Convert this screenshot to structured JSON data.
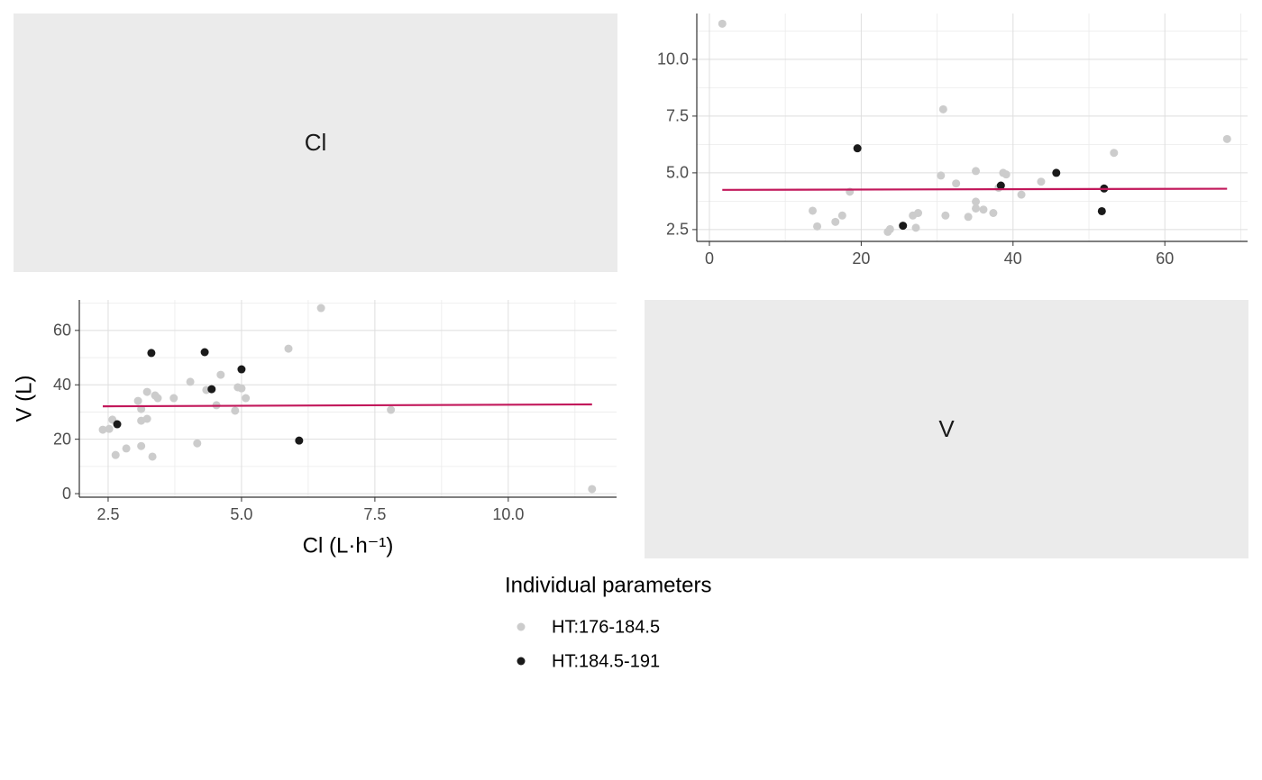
{
  "diagonal_labels": [
    "Cl",
    "V"
  ],
  "chart_data": [
    {
      "type": "scatter",
      "x_label": "Cl (L·h⁻¹)",
      "y_label": "V (L)",
      "legend_title": "Individual parameters",
      "xlim": [
        1.96,
        12.03
      ],
      "ylim": [
        -1.3,
        71.2
      ],
      "xticks": [
        2.5,
        {
          "value": 5,
          "label": "5.0"
        },
        7.5,
        {
          "value": 10,
          "label": "10.0"
        }
      ],
      "yticks": [
        0,
        20,
        40,
        60
      ],
      "minor_xticks": [
        3.75,
        6.25,
        8.75,
        11.25
      ],
      "minor_yticks": [
        10,
        30,
        50,
        70
      ],
      "grid": true,
      "series": [
        {
          "name": "HT:176-184.5",
          "color": "#cccccc",
          "x": [
            11.57,
            6.49,
            5.88,
            7.8,
            4.61,
            4.04,
            4.34,
            4.53,
            4.93,
            5.0,
            5.08,
            4.88,
            4.17,
            3.73,
            3.43,
            3.38,
            3.23,
            3.06,
            3.12,
            3.12,
            3.23,
            3.12,
            3.33,
            2.84,
            2.64,
            2.58,
            2.52,
            2.4
          ],
          "values": [
            1.7,
            68.2,
            53.3,
            30.8,
            43.7,
            41.1,
            38.1,
            32.5,
            39.1,
            38.7,
            35.1,
            30.5,
            18.5,
            35.1,
            35.1,
            36.1,
            37.4,
            34.1,
            31.1,
            26.8,
            27.5,
            17.5,
            13.6,
            16.6,
            14.2,
            27.2,
            23.8,
            23.5
          ]
        },
        {
          "name": "HT:184.5-191",
          "color": "#1a1a1a",
          "x": [
            3.31,
            4.31,
            5.0,
            4.44,
            2.67,
            6.08
          ],
          "values": [
            51.7,
            52.0,
            45.7,
            38.4,
            25.5,
            19.5
          ]
        }
      ],
      "fit": {
        "color": "#c2185b",
        "x": [
          2.4,
          11.57
        ],
        "values": [
          32.1,
          32.8
        ]
      }
    },
    {
      "type": "scatter",
      "xlim": [
        -1.66,
        70.9
      ],
      "ylim": [
        1.98,
        12.02
      ],
      "xticks": [
        0,
        20,
        40,
        60
      ],
      "yticks": [
        2.5,
        {
          "value": 5,
          "label": "5.0"
        },
        7.5,
        {
          "value": 10,
          "label": "10.0"
        }
      ],
      "minor_xticks": [
        10,
        30,
        50,
        70
      ],
      "minor_yticks": [
        3.75,
        6.25,
        8.75,
        11.25
      ],
      "grid": true,
      "series": [
        {
          "name": "HT:176-184.5",
          "color": "#cccccc",
          "x": [
            1.7,
            68.2,
            53.3,
            30.8,
            43.7,
            41.1,
            38.1,
            32.5,
            39.1,
            38.7,
            35.1,
            30.5,
            18.5,
            35.1,
            35.1,
            36.1,
            37.4,
            34.1,
            31.1,
            26.8,
            27.5,
            17.5,
            13.6,
            16.6,
            14.2,
            27.2,
            23.8,
            23.5
          ],
          "values": [
            11.57,
            6.49,
            5.88,
            7.8,
            4.61,
            4.04,
            4.34,
            4.53,
            4.93,
            5.0,
            5.08,
            4.88,
            4.17,
            3.73,
            3.43,
            3.38,
            3.23,
            3.06,
            3.12,
            3.12,
            3.23,
            3.12,
            3.33,
            2.84,
            2.64,
            2.58,
            2.52,
            2.4
          ]
        },
        {
          "name": "HT:184.5-191",
          "color": "#1a1a1a",
          "x": [
            51.7,
            52.0,
            45.7,
            38.4,
            25.5,
            19.5
          ],
          "values": [
            3.31,
            4.31,
            5.0,
            4.44,
            2.67,
            6.08
          ]
        }
      ],
      "fit": {
        "color": "#c2185b",
        "x": [
          1.7,
          68.2
        ],
        "values": [
          4.25,
          4.3
        ]
      }
    }
  ]
}
